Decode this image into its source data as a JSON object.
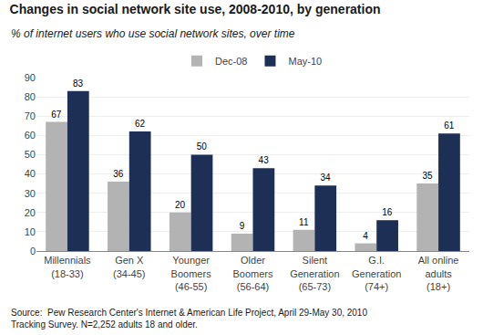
{
  "chart_data": {
    "type": "bar",
    "title": "Changes in social network site use, 2008-2010, by generation",
    "subtitle": "% of internet users who use social network sites, over time",
    "categories": [
      "Millennials\n(18-33)",
      "Gen X\n(34-45)",
      "Younger\nBoomers\n(46-55)",
      "Older\nBoomers\n(56-64)",
      "Silent\nGeneration\n(65-73)",
      "G.I.\nGeneration\n(74+)",
      "All online\nadults\n(18+)"
    ],
    "series": [
      {
        "name": "Dec-08",
        "color": "#b3b3b3",
        "values": [
          67,
          36,
          20,
          9,
          11,
          4,
          35
        ]
      },
      {
        "name": "May-10",
        "color": "#1e2f55",
        "values": [
          83,
          62,
          50,
          43,
          34,
          16,
          61
        ]
      }
    ],
    "ylim": [
      0,
      90
    ],
    "yticks": [
      0,
      10,
      20,
      30,
      40,
      50,
      60,
      70,
      80,
      90
    ],
    "grid": true,
    "legend": "top",
    "data_labels": true,
    "annotations": [
      "Source:  Pew Research Center's Internet & American Life Project, April 29-May 30, 2010\nTracking Survey. N=2,252 adults 18 and older."
    ]
  }
}
